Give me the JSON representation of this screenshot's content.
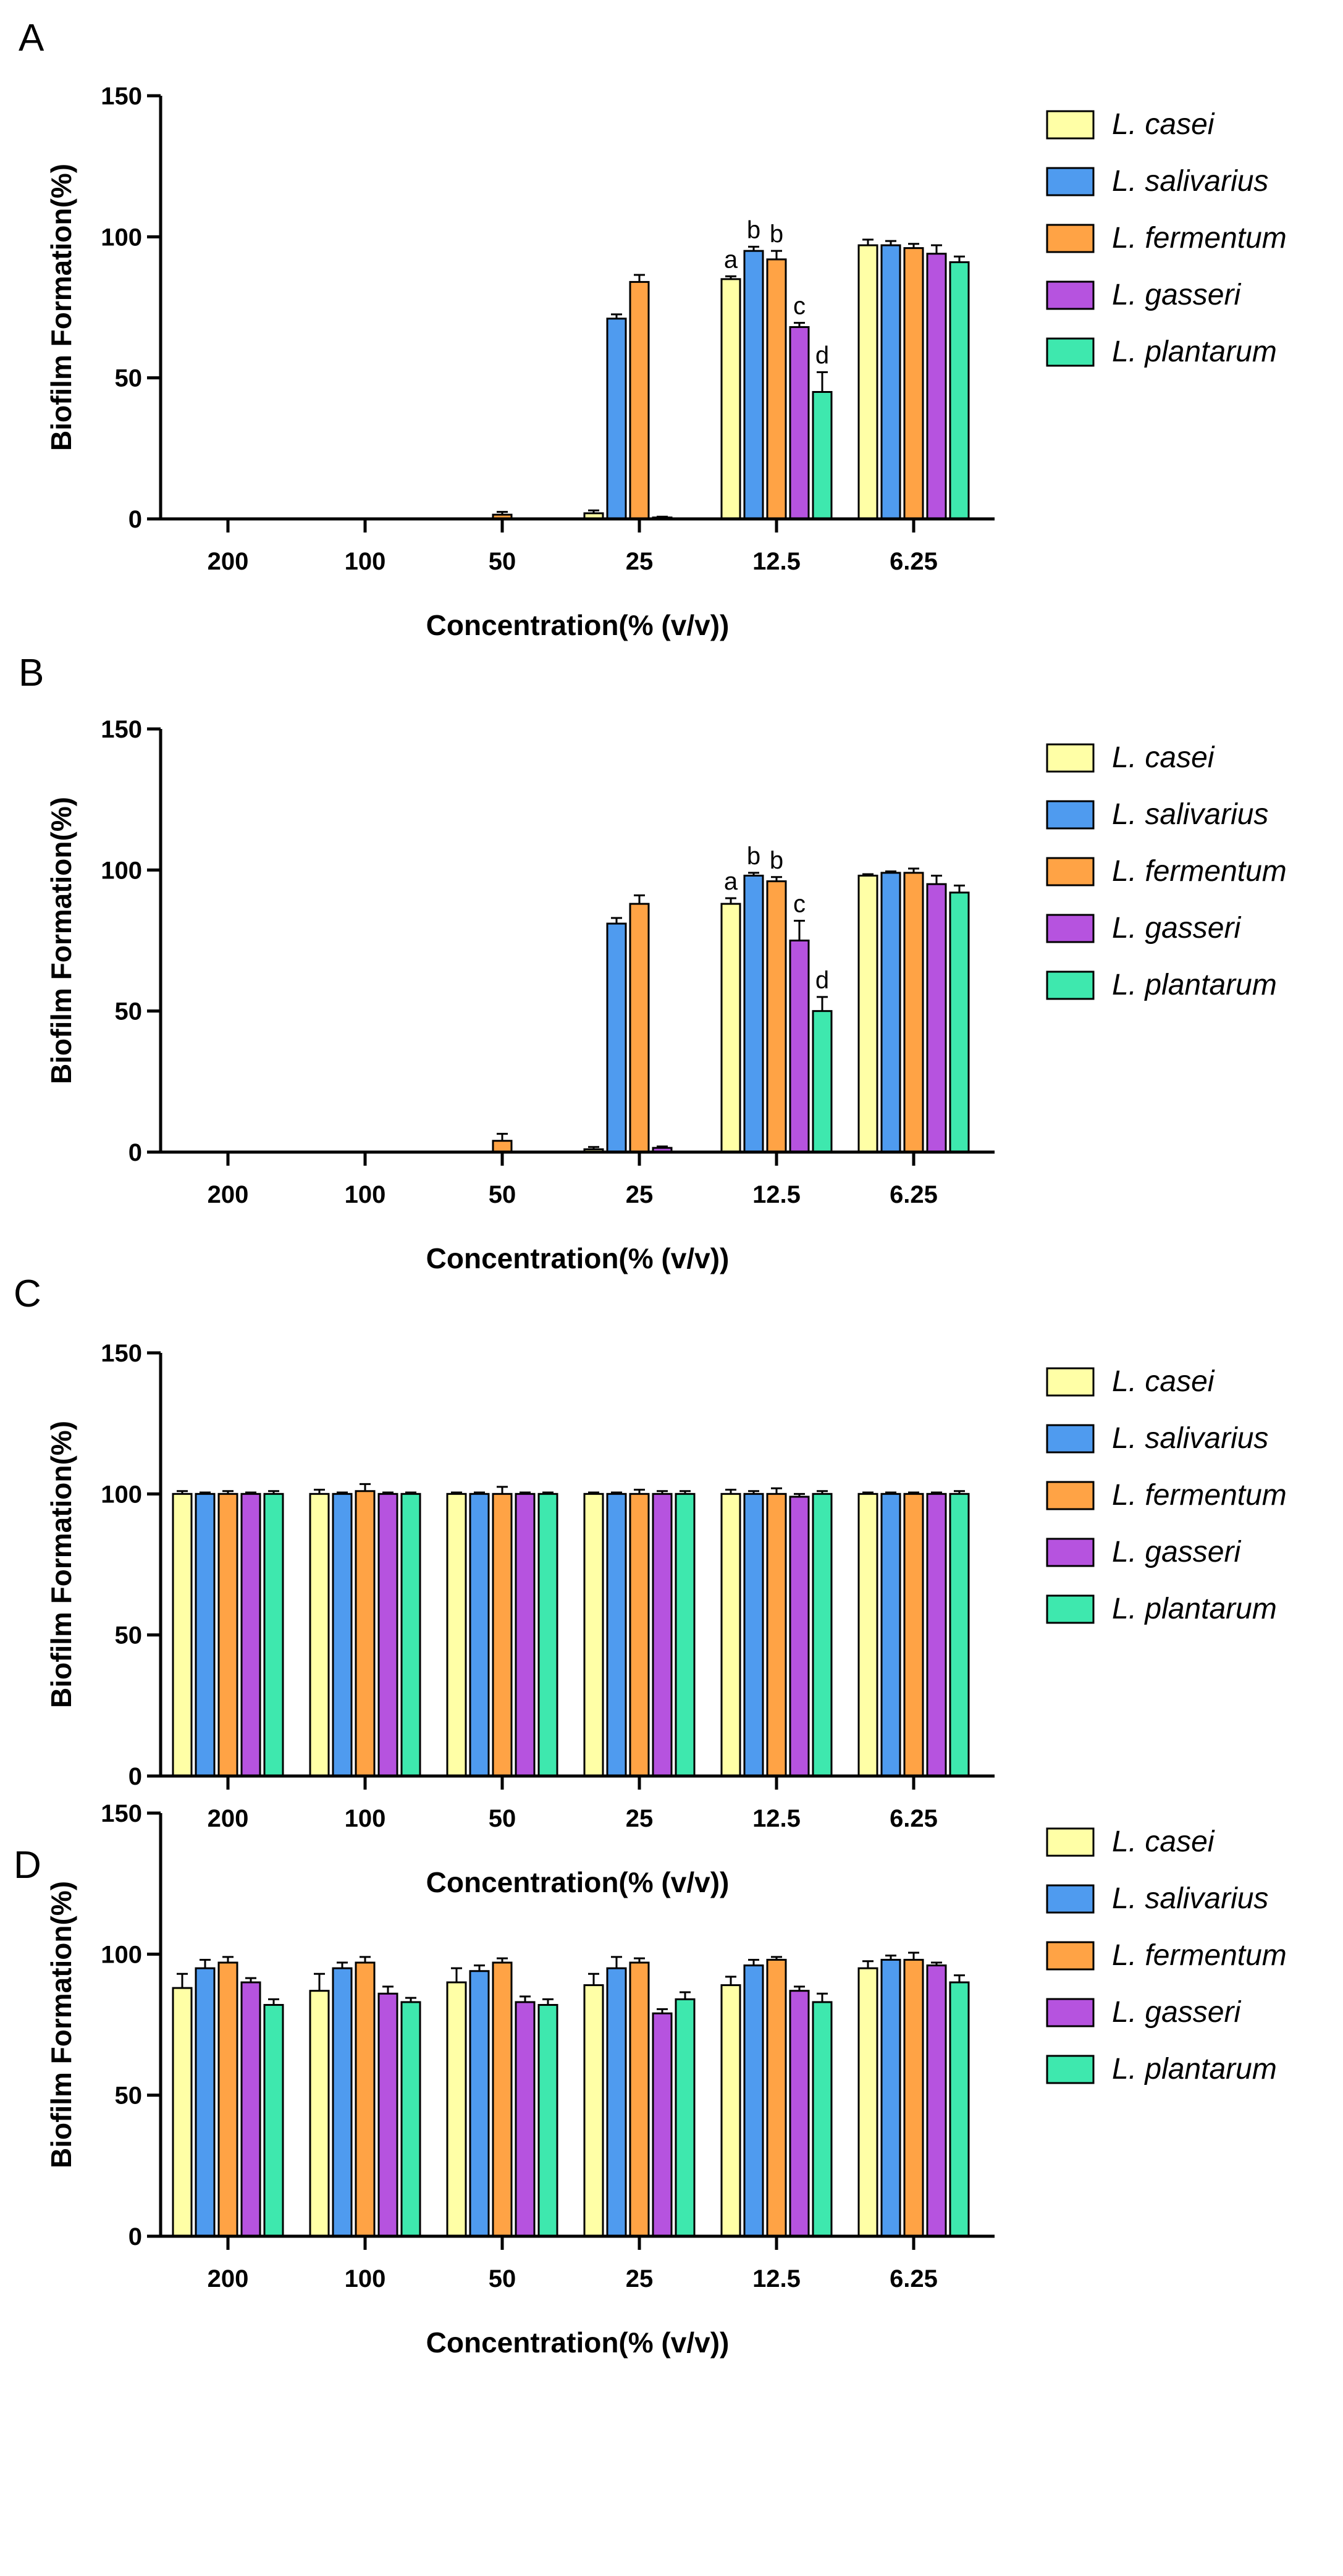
{
  "colors": {
    "L. casei": "#FFFFA6",
    "L. salivarius": "#4F9BEF",
    "L. fermentum": "#FFA345",
    "L. gasseri": "#B653DF",
    "L. plantarum": "#3EE8AE",
    "axis": "#000000"
  },
  "chart_data": [
    {
      "type": "bar",
      "panel": "A",
      "title": "",
      "xlabel": "Concentration(% (v/v))",
      "ylabel": "Biofilm Formation(%)",
      "ylim": [
        0,
        150
      ],
      "yticks": [
        0,
        50,
        100,
        150
      ],
      "categories": [
        "200",
        "100",
        "50",
        "25",
        "12.5",
        "6.25"
      ],
      "legend_position": "right",
      "series": [
        {
          "name": "L. casei",
          "values": [
            0,
            0,
            0,
            2,
            85,
            97
          ],
          "errors": [
            0,
            0,
            0,
            1,
            1,
            2
          ]
        },
        {
          "name": "L. salivarius",
          "values": [
            0,
            0,
            0,
            71,
            95,
            97
          ],
          "errors": [
            0,
            0,
            0,
            1.5,
            1.5,
            1.5
          ]
        },
        {
          "name": "L. fermentum",
          "values": [
            0,
            0,
            1.5,
            84,
            92,
            96
          ],
          "errors": [
            0,
            0,
            1,
            2.5,
            3,
            1.5
          ]
        },
        {
          "name": "L. gasseri",
          "values": [
            0,
            0,
            0,
            0.5,
            68,
            94
          ],
          "errors": [
            0,
            0,
            0,
            0.3,
            1.5,
            3
          ]
        },
        {
          "name": "L. plantarum",
          "values": [
            0,
            0,
            0,
            0,
            45,
            91
          ],
          "errors": [
            0,
            0,
            0,
            0,
            7,
            2
          ]
        }
      ],
      "annotations": [
        {
          "category": "12.5",
          "series": "L. casei",
          "text": "a"
        },
        {
          "category": "12.5",
          "series": "L. salivarius",
          "text": "b"
        },
        {
          "category": "12.5",
          "series": "L. fermentum",
          "text": "b"
        },
        {
          "category": "12.5",
          "series": "L. gasseri",
          "text": "c"
        },
        {
          "category": "12.5",
          "series": "L. plantarum",
          "text": "d"
        }
      ]
    },
    {
      "type": "bar",
      "panel": "B",
      "title": "",
      "xlabel": "Concentration(% (v/v))",
      "ylabel": "Biofilm Formation(%)",
      "ylim": [
        0,
        150
      ],
      "yticks": [
        0,
        50,
        100,
        150
      ],
      "categories": [
        "200",
        "100",
        "50",
        "25",
        "12.5",
        "6.25"
      ],
      "legend_position": "right",
      "series": [
        {
          "name": "L. casei",
          "values": [
            0,
            0,
            0,
            1,
            88,
            98
          ],
          "errors": [
            0,
            0,
            0,
            0.8,
            2,
            0.5
          ]
        },
        {
          "name": "L. salivarius",
          "values": [
            0,
            0,
            0,
            81,
            98,
            99
          ],
          "errors": [
            0,
            0,
            0,
            2,
            1,
            0.5
          ]
        },
        {
          "name": "L. fermentum",
          "values": [
            0,
            0,
            4,
            88,
            96,
            99
          ],
          "errors": [
            0,
            0,
            2.5,
            3,
            1.5,
            1.5
          ]
        },
        {
          "name": "L. gasseri",
          "values": [
            0,
            0,
            0,
            1.5,
            75,
            95
          ],
          "errors": [
            0,
            0,
            0,
            0.5,
            7,
            3
          ]
        },
        {
          "name": "L. plantarum",
          "values": [
            0,
            0,
            0,
            0,
            50,
            92
          ],
          "errors": [
            0,
            0,
            0,
            0,
            5,
            2.5
          ]
        }
      ],
      "annotations": [
        {
          "category": "12.5",
          "series": "L. casei",
          "text": "a"
        },
        {
          "category": "12.5",
          "series": "L. salivarius",
          "text": "b"
        },
        {
          "category": "12.5",
          "series": "L. fermentum",
          "text": "b"
        },
        {
          "category": "12.5",
          "series": "L. gasseri",
          "text": "c"
        },
        {
          "category": "12.5",
          "series": "L. plantarum",
          "text": "d"
        }
      ]
    },
    {
      "type": "bar",
      "panel": "C",
      "title": "",
      "xlabel": "Concentration(% (v/v))",
      "ylabel": "Biofilm Formation(%)",
      "ylim": [
        0,
        150
      ],
      "yticks": [
        0,
        50,
        100,
        150
      ],
      "categories": [
        "200",
        "100",
        "50",
        "25",
        "12.5",
        "6.25"
      ],
      "legend_position": "right",
      "series": [
        {
          "name": "L. casei",
          "values": [
            100,
            100,
            100,
            100,
            100,
            100
          ],
          "errors": [
            1,
            1.5,
            0.5,
            0.5,
            1.5,
            0.5
          ]
        },
        {
          "name": "L. salivarius",
          "values": [
            100,
            100,
            100,
            100,
            100,
            100
          ],
          "errors": [
            0.5,
            0.5,
            0.5,
            0.5,
            1,
            0.5
          ]
        },
        {
          "name": "L. fermentum",
          "values": [
            100,
            101,
            100,
            100,
            100,
            100
          ],
          "errors": [
            1,
            2.5,
            2.5,
            1.5,
            2,
            0.5
          ]
        },
        {
          "name": "L. gasseri",
          "values": [
            100,
            100,
            100,
            100,
            99,
            100
          ],
          "errors": [
            0.5,
            0.5,
            0.5,
            1,
            1,
            0.5
          ]
        },
        {
          "name": "L. plantarum",
          "values": [
            100,
            100,
            100,
            100,
            100,
            100
          ],
          "errors": [
            1,
            0.5,
            0.5,
            1,
            1,
            1
          ]
        }
      ],
      "annotations": []
    },
    {
      "type": "bar",
      "panel": "D",
      "title": "",
      "xlabel": "Concentration(% (v/v))",
      "ylabel": "Biofilm Formation(%)",
      "ylim": [
        0,
        150
      ],
      "yticks": [
        0,
        50,
        100,
        150
      ],
      "categories": [
        "200",
        "100",
        "50",
        "25",
        "12.5",
        "6.25"
      ],
      "legend_position": "right",
      "series": [
        {
          "name": "L. casei",
          "values": [
            88,
            87,
            90,
            89,
            89,
            95
          ],
          "errors": [
            5,
            6,
            5,
            4,
            3,
            2.5
          ]
        },
        {
          "name": "L. salivarius",
          "values": [
            95,
            95,
            94,
            95,
            96,
            98
          ],
          "errors": [
            3,
            2,
            2,
            4,
            2,
            1.5
          ]
        },
        {
          "name": "L. fermentum",
          "values": [
            97,
            97,
            97,
            97,
            98,
            98
          ],
          "errors": [
            2,
            2,
            1.5,
            1.5,
            1,
            2.5
          ]
        },
        {
          "name": "L. gasseri",
          "values": [
            90,
            86,
            83,
            79,
            87,
            96
          ],
          "errors": [
            1.5,
            2.5,
            2,
            1.5,
            1.5,
            1
          ]
        },
        {
          "name": "L. plantarum",
          "values": [
            82,
            83,
            82,
            84,
            83,
            90
          ],
          "errors": [
            2,
            1.5,
            2,
            2.5,
            3,
            2.5
          ]
        }
      ],
      "annotations": []
    }
  ]
}
